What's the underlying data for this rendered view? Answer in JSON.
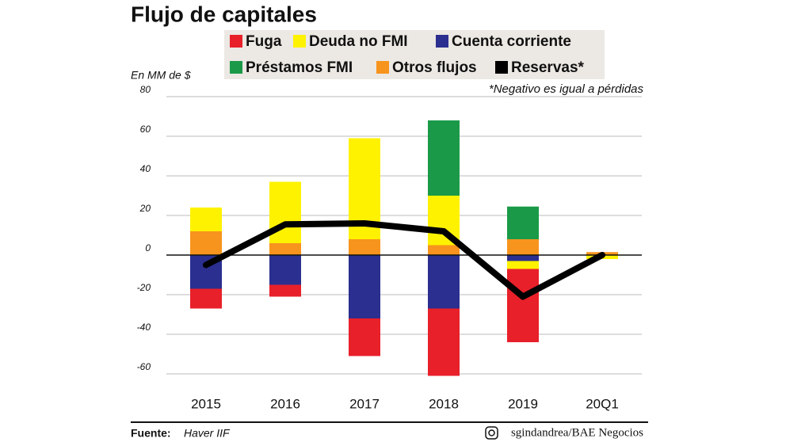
{
  "chart_data": {
    "type": "bar",
    "title": "Flujo de capitales",
    "y_axis_label": "En MM de $",
    "note": "*Negativo es igual a pérdidas",
    "source_label": "Fuente:",
    "source": "Haver IIF",
    "credit": "sgindandrea/BAE Negocios",
    "categories": [
      "2015",
      "2016",
      "2017",
      "2018",
      "2019",
      "20Q1"
    ],
    "series": [
      {
        "name": "Fuga",
        "color": "#e8202a",
        "values": [
          -10,
          -6,
          -19,
          -34,
          -37,
          0
        ]
      },
      {
        "name": "Deuda no FMI",
        "color": "#fff200",
        "values": [
          12,
          31,
          51,
          25,
          -4,
          -2
        ]
      },
      {
        "name": "Cuenta corriente",
        "color": "#2b2f8f",
        "values": [
          -17,
          -15,
          -32,
          -27,
          -3,
          0
        ]
      },
      {
        "name": "Préstamos FMI",
        "color": "#1a9a48",
        "values": [
          0,
          0,
          0,
          38,
          16.5,
          0
        ]
      },
      {
        "name": "Otros flujos",
        "color": "#f7941d",
        "values": [
          12,
          6,
          8,
          5,
          8,
          1.5
        ]
      },
      {
        "name": "Reservas*",
        "color": "#000000",
        "type": "line",
        "values": [
          -5,
          15.5,
          16,
          12,
          -21,
          0
        ]
      }
    ],
    "ylim": [
      -64,
      80
    ],
    "yticks": [
      80,
      60,
      40,
      20,
      0,
      -20,
      -40,
      -60
    ],
    "grid": true
  }
}
